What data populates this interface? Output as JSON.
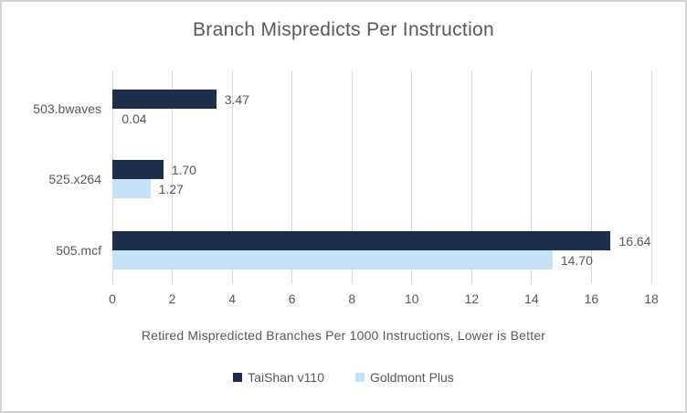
{
  "chart_data": {
    "type": "bar",
    "orientation": "horizontal",
    "title": "Branch Mispredicts Per Instruction",
    "xlabel": "Retired Mispredicted Branches Per 1000 Instructions, Lower is Better",
    "categories": [
      "503.bwaves",
      "525.x264",
      "505.mcf"
    ],
    "series": [
      {
        "name": "TaiShan v110",
        "color": "#1c2e4a",
        "values": [
          3.47,
          1.7,
          16.64
        ],
        "labels": [
          "3.47",
          "1.70",
          "16.64"
        ]
      },
      {
        "name": "Goldmont Plus",
        "color": "#c7e2f4",
        "values": [
          0.04,
          1.27,
          14.7
        ],
        "labels": [
          "0.04",
          "1.27",
          "14.70"
        ]
      }
    ],
    "x_ticks": [
      0,
      2,
      4,
      6,
      8,
      10,
      12,
      14,
      16,
      18
    ],
    "xlim": [
      0,
      18
    ],
    "grid": "vertical",
    "legend_position": "bottom"
  },
  "colors": {
    "text": "#595959",
    "gridline": "#d9d9d9",
    "frame_border": "#d4d4d4",
    "background": "#ffffff"
  }
}
